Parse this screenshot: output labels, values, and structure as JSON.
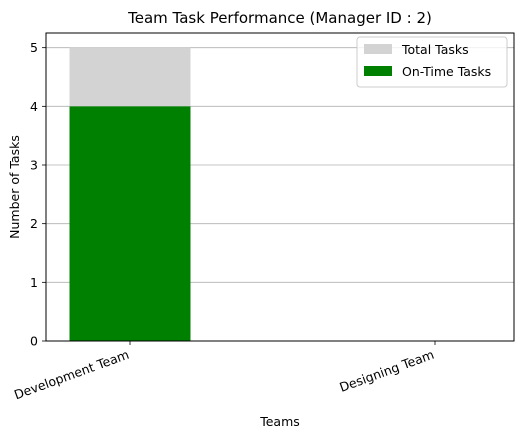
{
  "chart_data": {
    "type": "bar",
    "title": "Team Task Performance (Manager ID : 2)",
    "xlabel": "Teams",
    "ylabel": "Number of Tasks",
    "categories": [
      "Development Team",
      "Designing Team"
    ],
    "series": [
      {
        "name": "Total Tasks",
        "values": [
          5,
          0
        ],
        "color": "#d3d3d3"
      },
      {
        "name": "On-Time Tasks",
        "values": [
          4,
          0
        ],
        "color": "#008000"
      }
    ],
    "ylim": [
      0,
      5.25
    ],
    "yticks": [
      0,
      1,
      2,
      3,
      4,
      5
    ],
    "grid": "y",
    "legend_position": "top-right",
    "xtick_rotation": "20 degrees"
  }
}
